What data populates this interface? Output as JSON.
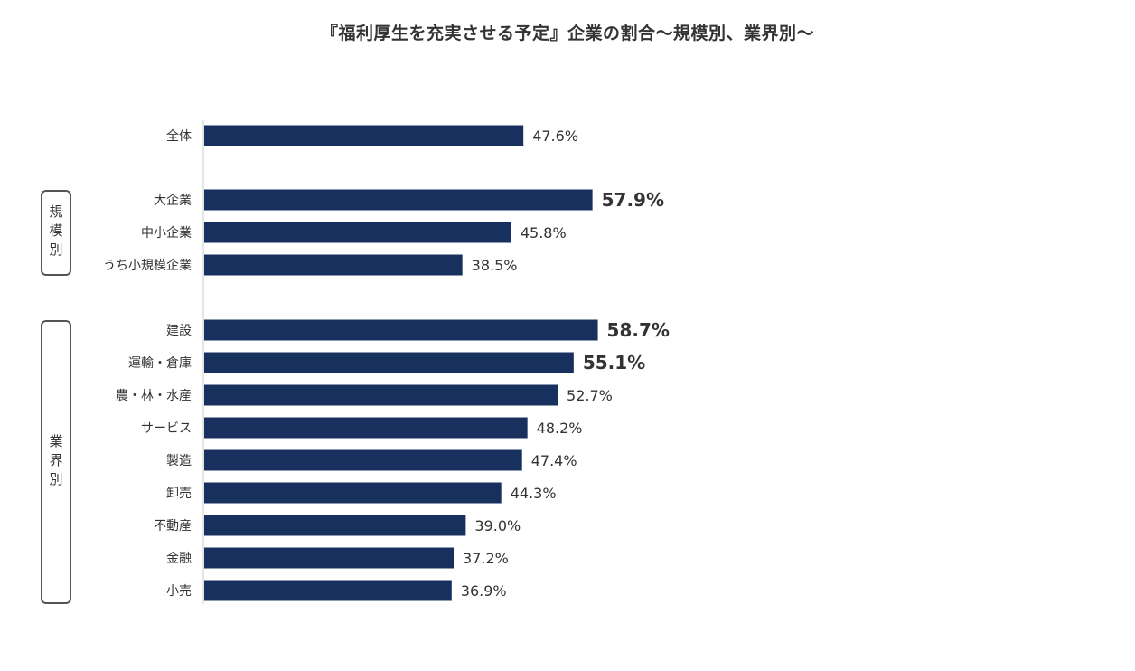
{
  "title": "『福利厚生を充実させる予定』企業の割合〜規模別、業界別〜",
  "groups": {
    "size": "規模別",
    "industry": "業界別"
  },
  "colors": {
    "bar": "#17305e",
    "text": "#333333",
    "axis": "#cccccc"
  },
  "chart_data": {
    "type": "bar",
    "orientation": "horizontal",
    "categories": [
      "全体",
      "大企業",
      "中小企業",
      "うち小規模企業",
      "建設",
      "運輸・倉庫",
      "農・林・水産",
      "サービス",
      "製造",
      "卸売",
      "不動産",
      "金融",
      "小売"
    ],
    "values": [
      47.6,
      57.9,
      45.8,
      38.5,
      58.7,
      55.1,
      52.7,
      48.2,
      47.4,
      44.3,
      39.0,
      37.2,
      36.9
    ],
    "labels": [
      "47.6%",
      "57.9%",
      "45.8%",
      "38.5%",
      "58.7%",
      "55.1%",
      "52.7%",
      "48.2%",
      "47.4%",
      "44.3%",
      "39.0%",
      "37.2%",
      "36.9%"
    ],
    "emphasized": [
      false,
      true,
      false,
      false,
      true,
      true,
      false,
      false,
      false,
      false,
      false,
      false,
      false
    ],
    "unit": "%",
    "xlim": [
      0,
      100
    ],
    "grid": false,
    "legend": "none"
  }
}
